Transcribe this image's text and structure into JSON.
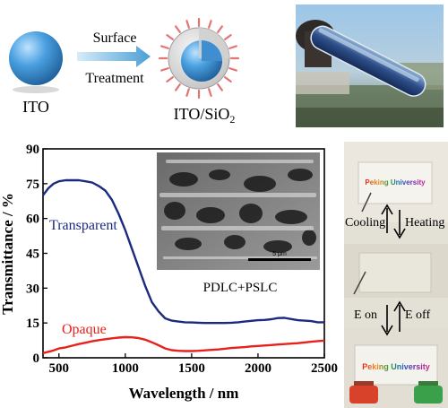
{
  "schematic": {
    "ito_label": "ITO",
    "arrow_top": "Surface",
    "arrow_bottom": "Treatment",
    "ito_sio2_label": "ITO/SiO",
    "ito_sio2_sub": "2"
  },
  "photo_panel": {
    "cooling": "Cooling",
    "heating": "Heating",
    "e_on": "E on",
    "e_off": "E off",
    "card_text": "Peking University"
  },
  "inset": {
    "label": "PDLC+PSLC",
    "scale_bar": "5 μm"
  },
  "colors": {
    "transparent": "#1b2a7f",
    "opaque": "#e8211c",
    "sphere": "#3d8fd1"
  },
  "chart_data": {
    "type": "line",
    "xlabel": "Wavelength / nm",
    "ylabel": "Transmittance / %",
    "xlim": [
      380,
      2500
    ],
    "ylim": [
      0,
      90
    ],
    "xticks": [
      500,
      1000,
      1500,
      2000,
      2500
    ],
    "yticks": [
      0,
      15,
      30,
      45,
      60,
      75,
      90
    ],
    "grid": false,
    "series": [
      {
        "name": "Transparent",
        "color": "#1b2a7f",
        "x": [
          380,
          420,
          460,
          500,
          550,
          600,
          650,
          700,
          750,
          800,
          850,
          900,
          950,
          1000,
          1050,
          1100,
          1150,
          1200,
          1250,
          1300,
          1350,
          1400,
          1450,
          1500,
          1550,
          1600,
          1650,
          1700,
          1750,
          1800,
          1850,
          1900,
          1950,
          2000,
          2050,
          2100,
          2150,
          2200,
          2250,
          2300,
          2350,
          2400,
          2450,
          2500
        ],
        "y": [
          70,
          73,
          75,
          76,
          76.5,
          76.5,
          76.5,
          76,
          75.5,
          74,
          72,
          68,
          62,
          55,
          47,
          39,
          31,
          24,
          20,
          17,
          16,
          15.6,
          15.3,
          15.2,
          15.1,
          15,
          15,
          15,
          15,
          15.1,
          15.3,
          15.6,
          15.9,
          16.2,
          16.3,
          16.6,
          17.1,
          17.2,
          16.7,
          16.2,
          16.0,
          15.8,
          15.3,
          15.3
        ]
      },
      {
        "name": "Opaque",
        "color": "#e8211c",
        "x": [
          380,
          450,
          500,
          550,
          600,
          650,
          700,
          750,
          800,
          850,
          900,
          950,
          1000,
          1050,
          1100,
          1150,
          1200,
          1250,
          1300,
          1350,
          1400,
          1450,
          1500,
          1550,
          1600,
          1650,
          1700,
          1750,
          1800,
          1850,
          1900,
          1950,
          2000,
          2050,
          2100,
          2150,
          2200,
          2250,
          2300,
          2350,
          2400,
          2450,
          2500
        ],
        "y": [
          2,
          3,
          4,
          4.5,
          5.2,
          5.9,
          6.5,
          7.1,
          7.6,
          8,
          8.4,
          8.7,
          8.9,
          8.8,
          8.5,
          7.8,
          6.7,
          5.4,
          4.0,
          3.3,
          3.0,
          2.9,
          2.9,
          3.0,
          3.2,
          3.4,
          3.6,
          3.9,
          4.2,
          4.4,
          4.6,
          4.9,
          5.1,
          5.3,
          5.5,
          5.7,
          5.9,
          6.1,
          6.3,
          6.6,
          6.9,
          7.2,
          7.4
        ]
      }
    ]
  }
}
